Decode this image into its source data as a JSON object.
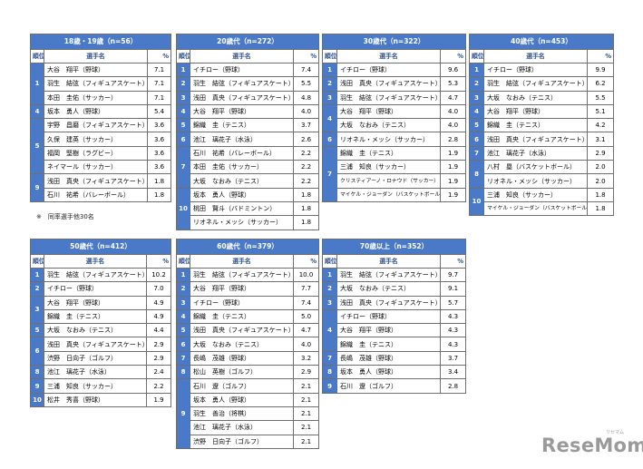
{
  "header_rank": "順位",
  "header_name": "選手名",
  "header_pct": "%",
  "note": "※　同率選手他30名",
  "logo": "ReseMom",
  "logo_sub": "リセマム",
  "tables": [
    {
      "id": "t1",
      "title": "18歳・19歳（n=56）",
      "rows": [
        {
          "rank": "1",
          "span": 3,
          "name": "大谷　翔平（野球）",
          "pct": "7.1"
        },
        {
          "name": "羽生　結弦（フィギュアスケート）",
          "pct": "7.1"
        },
        {
          "name": "本田　圭佑（サッカー）",
          "pct": "7.1"
        },
        {
          "rank": "4",
          "span": 1,
          "name": "坂本　勇人（野球）",
          "pct": "5.4"
        },
        {
          "rank": "5",
          "span": 4,
          "name": "宇野　昌磨（フィギュアスケート）",
          "pct": "3.6"
        },
        {
          "name": "久保　建英（サッカー）",
          "pct": "3.6"
        },
        {
          "name": "福岡　堅樹（ラグビー）",
          "pct": "3.6"
        },
        {
          "name": "ネイマール（サッカー）",
          "pct": "3.6"
        },
        {
          "rank": "9",
          "span": 2,
          "name": "浅田　真央（フィギュアスケート）",
          "pct": "1.8"
        },
        {
          "name": "石川　祐希（バレーボール）",
          "pct": "1.8"
        }
      ]
    },
    {
      "id": "t2",
      "title": "20歳代（n=272）",
      "rows": [
        {
          "rank": "1",
          "span": 1,
          "name": "イチロー（野球）",
          "pct": "7.4"
        },
        {
          "rank": "2",
          "span": 1,
          "name": "羽生　結弦（フィギュアスケート）",
          "pct": "5.5"
        },
        {
          "rank": "3",
          "span": 1,
          "name": "浅田　真央（フィギュアスケート）",
          "pct": "4.8"
        },
        {
          "rank": "4",
          "span": 1,
          "name": "大谷　翔平（野球）",
          "pct": "4.0"
        },
        {
          "rank": "5",
          "span": 1,
          "name": "錦織　圭（テニス）",
          "pct": "3.7"
        },
        {
          "rank": "6",
          "span": 1,
          "name": "池江　璃花子（水泳）",
          "pct": "2.6"
        },
        {
          "rank": "7",
          "span": 3,
          "name": "石川　祐希（バレーボール）",
          "pct": "2.2"
        },
        {
          "name": "本田　圭佑（サッカー）",
          "pct": "2.2"
        },
        {
          "name": "大坂　なおみ（テニス）",
          "pct": "2.2"
        },
        {
          "rank": "10",
          "span": 3,
          "name": "坂本　勇人（野球）",
          "pct": "1.8"
        },
        {
          "name": "桃田　賢斗（バドミントン）",
          "pct": "1.8"
        },
        {
          "name": "リオネル・メッシ（サッカー）",
          "pct": "1.8"
        }
      ]
    },
    {
      "id": "t3",
      "title": "30歳代（n=322）",
      "rows": [
        {
          "rank": "1",
          "span": 1,
          "name": "イチロー（野球）",
          "pct": "9.6"
        },
        {
          "rank": "2",
          "span": 1,
          "name": "浅田　真央（フィギュアスケート）",
          "pct": "5.3"
        },
        {
          "rank": "3",
          "span": 1,
          "name": "羽生　結弦（フィギュアスケート）",
          "pct": "4.7"
        },
        {
          "rank": "4",
          "span": 2,
          "name": "大谷　翔平（野球）",
          "pct": "4.0"
        },
        {
          "name": "大坂　なおみ（テニス）",
          "pct": "4.0"
        },
        {
          "rank": "6",
          "span": 1,
          "name": "リオネル・メッシ（サッカー）",
          "pct": "2.8"
        },
        {
          "rank": "7",
          "span": 4,
          "name": "錦織　圭（テニス）",
          "pct": "1.9"
        },
        {
          "name": "三浦　知良（サッカー）",
          "pct": "1.9"
        },
        {
          "name": "クリスティアーノ・ロナウド（サッカー）",
          "pct": "1.9",
          "small": true
        },
        {
          "name": "マイケル・ジョーダン（バスケットボール）",
          "pct": "1.9",
          "small": true
        }
      ]
    },
    {
      "id": "t4",
      "title": "40歳代（n=453）",
      "rows": [
        {
          "rank": "1",
          "span": 1,
          "name": "イチロー（野球）",
          "pct": "9.9"
        },
        {
          "rank": "2",
          "span": 1,
          "name": "羽生　結弦（フィギュアスケート）",
          "pct": "6.2"
        },
        {
          "rank": "3",
          "span": 1,
          "name": "大坂　なおみ（テニス）",
          "pct": "5.5"
        },
        {
          "rank": "4",
          "span": 1,
          "name": "大谷　翔平（野球）",
          "pct": "5.1"
        },
        {
          "rank": "5",
          "span": 1,
          "name": "錦織　圭（テニス）",
          "pct": "4.2"
        },
        {
          "rank": "6",
          "span": 1,
          "name": "浅田　真央（フィギュアスケート）",
          "pct": "3.1"
        },
        {
          "rank": "7",
          "span": 1,
          "name": "池江　璃花子（水泳）",
          "pct": "2.9"
        },
        {
          "rank": "8",
          "span": 2,
          "name": "八村　塁（バスケットボール）",
          "pct": "2.0"
        },
        {
          "name": "リオネル・メッシ（サッカー）",
          "pct": "2.0"
        },
        {
          "rank": "10",
          "span": 2,
          "name": "三浦　知良（サッカー）",
          "pct": "1.8"
        },
        {
          "name": "マイケル・ジョーダン（バスケットボール）",
          "pct": "1.8",
          "small": true
        }
      ]
    },
    {
      "id": "t5",
      "title": "50歳代（n=412）",
      "rows": [
        {
          "rank": "1",
          "span": 1,
          "name": "羽生　結弦（フィギュアスケート）",
          "pct": "10.2"
        },
        {
          "rank": "2",
          "span": 1,
          "name": "イチロー（野球）",
          "pct": "7.0"
        },
        {
          "rank": "3",
          "span": 2,
          "name": "大谷　翔平（野球）",
          "pct": "4.9"
        },
        {
          "name": "錦織　圭（テニス）",
          "pct": "4.9"
        },
        {
          "rank": "5",
          "span": 1,
          "name": "大坂　なおみ（テニス）",
          "pct": "4.4"
        },
        {
          "rank": "6",
          "span": 2,
          "name": "浅田　真央（フィギュアスケート）",
          "pct": "2.9"
        },
        {
          "name": "渋野　日向子（ゴルフ）",
          "pct": "2.9"
        },
        {
          "rank": "8",
          "span": 1,
          "name": "池江　璃花子（水泳）",
          "pct": "2.4"
        },
        {
          "rank": "9",
          "span": 1,
          "name": "三浦　知良（サッカー）",
          "pct": "2.2"
        },
        {
          "rank": "10",
          "span": 1,
          "name": "松井　秀喜（野球）",
          "pct": "1.9"
        }
      ]
    },
    {
      "id": "t6",
      "title": "60歳代（n=379）",
      "rows": [
        {
          "rank": "1",
          "span": 1,
          "name": "羽生　結弦（フィギュアスケート）",
          "pct": "10.0"
        },
        {
          "rank": "2",
          "span": 1,
          "name": "大谷　翔平（野球）",
          "pct": "7.7"
        },
        {
          "rank": "3",
          "span": 1,
          "name": "イチロー（野球）",
          "pct": "7.4"
        },
        {
          "rank": "4",
          "span": 1,
          "name": "錦織　圭（テニス）",
          "pct": "5.0"
        },
        {
          "rank": "5",
          "span": 1,
          "name": "浅田　真央（フィギュアスケート）",
          "pct": "4.7"
        },
        {
          "rank": "6",
          "span": 1,
          "name": "大坂　なおみ（テニス）",
          "pct": "4.0"
        },
        {
          "rank": "7",
          "span": 1,
          "name": "長嶋　茂雄（野球）",
          "pct": "3.2"
        },
        {
          "rank": "8",
          "span": 1,
          "name": "松山　英樹（ゴルフ）",
          "pct": "2.9"
        },
        {
          "rank": "9",
          "span": 5,
          "name": "石川　遼（ゴルフ）",
          "pct": "2.1"
        },
        {
          "name": "坂本　勇人（野球）",
          "pct": "2.1"
        },
        {
          "name": "羽生　善治（将棋）",
          "pct": "2.1"
        },
        {
          "name": "池江　璃花子（水泳）",
          "pct": "2.1"
        },
        {
          "name": "渋野　日向子（ゴルフ）",
          "pct": "2.1"
        }
      ]
    },
    {
      "id": "t7",
      "title": "70歳以上（n=352）",
      "rows": [
        {
          "rank": "1",
          "span": 1,
          "name": "羽生　結弦（フィギュアスケート）",
          "pct": "9.7"
        },
        {
          "rank": "2",
          "span": 1,
          "name": "大坂　なおみ（テニス）",
          "pct": "9.1"
        },
        {
          "rank": "3",
          "span": 1,
          "name": "浅田　真央（フィギュアスケート）",
          "pct": "5.7"
        },
        {
          "rank": "4",
          "span": 3,
          "name": "イチロー（野球）",
          "pct": "4.3"
        },
        {
          "name": "大谷　翔平（野球）",
          "pct": "4.3"
        },
        {
          "name": "錦織　圭（テニス）",
          "pct": "4.3"
        },
        {
          "rank": "7",
          "span": 1,
          "name": "長嶋　茂雄（野球）",
          "pct": "3.7"
        },
        {
          "rank": "8",
          "span": 1,
          "name": "坂本　勇人（野球）",
          "pct": "3.4"
        },
        {
          "rank": "9",
          "span": 1,
          "name": "石川　遼（ゴルフ）",
          "pct": "2.8"
        }
      ]
    }
  ]
}
